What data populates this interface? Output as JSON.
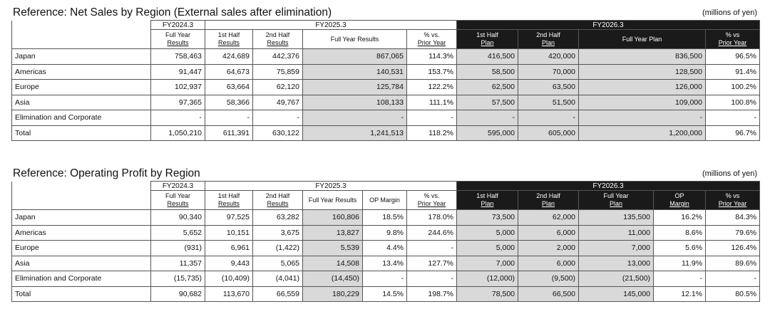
{
  "sales": {
    "title": "Reference: Net Sales by Region (External sales after elimination)",
    "units": "(millions of yen)",
    "period_fy24": "FY2024.3",
    "period_fy25": "FY2025.3",
    "period_fy26": "FY2026.3",
    "h_fy24": [
      "Full Year",
      "Results"
    ],
    "h_h1": [
      "1st Half",
      "Results"
    ],
    "h_h2": [
      "2nd Half",
      "Results"
    ],
    "h_fy25": "Full Year Results",
    "h_pct25": [
      "% vs.",
      "Prior Year"
    ],
    "h_p1": [
      "1st Half",
      "Plan"
    ],
    "h_p2": [
      "2nd Half",
      "Plan"
    ],
    "h_fyp": "Full Year Plan",
    "h_pct26": [
      "% vs",
      "Prior Year"
    ],
    "rows": [
      {
        "label": "Japan",
        "c": [
          "758,463",
          "424,689",
          "442,376",
          "867,065",
          "114.3%",
          "416,500",
          "420,000",
          "836,500",
          "96.5%"
        ]
      },
      {
        "label": "Americas",
        "c": [
          "91,447",
          "64,673",
          "75,859",
          "140,531",
          "153.7%",
          "58,500",
          "70,000",
          "128,500",
          "91.4%"
        ]
      },
      {
        "label": "Europe",
        "c": [
          "102,937",
          "63,664",
          "62,120",
          "125,784",
          "122.2%",
          "62,500",
          "63,500",
          "126,000",
          "100.2%"
        ]
      },
      {
        "label": "Asia",
        "c": [
          "97,365",
          "58,366",
          "49,767",
          "108,133",
          "111.1%",
          "57,500",
          "51,500",
          "109,000",
          "100.8%"
        ]
      },
      {
        "label": "Elimination and Corporate",
        "c": [
          "-",
          "-",
          "-",
          "-",
          "-",
          "-",
          "-",
          "-",
          "-"
        ]
      },
      {
        "label": "Total",
        "c": [
          "1,050,210",
          "611,391",
          "630,122",
          "1,241,513",
          "118.2%",
          "595,000",
          "605,000",
          "1,200,000",
          "96.7%"
        ]
      }
    ]
  },
  "op": {
    "title": "Reference: Operating Profit by Region",
    "units": "(millions of yen)",
    "period_fy24": "FY2024.3",
    "period_fy25": "FY2025.3",
    "period_fy26": "FY2026.3",
    "h_fy24": [
      "Full Year",
      "Results"
    ],
    "h_h1": [
      "1st Half",
      "Results"
    ],
    "h_h2": [
      "2nd Half",
      "Results"
    ],
    "h_fy25": "Full Year Results",
    "h_margin": "OP Margin",
    "h_pct25": [
      "% vs.",
      "Prior Year"
    ],
    "h_p1": [
      "1st Half",
      "Plan"
    ],
    "h_p2": [
      "2nd Half",
      "Plan"
    ],
    "h_fyp": [
      "Full Year",
      "Plan"
    ],
    "h_margin26": [
      "OP",
      "Margin"
    ],
    "h_pct26": [
      "% vs",
      "Prior Year"
    ],
    "rows": [
      {
        "label": "Japan",
        "c": [
          "90,340",
          "97,525",
          "63,282",
          "160,806",
          "18.5%",
          "178.0%",
          "73,500",
          "62,000",
          "135,500",
          "16.2%",
          "84.3%"
        ]
      },
      {
        "label": "Americas",
        "c": [
          "5,652",
          "10,151",
          "3,675",
          "13,827",
          "9.8%",
          "244.6%",
          "5,000",
          "6,000",
          "11,000",
          "8.6%",
          "79.6%"
        ]
      },
      {
        "label": "Europe",
        "c": [
          "(931)",
          "6,961",
          "(1,422)",
          "5,539",
          "4.4%",
          "-",
          "5,000",
          "2,000",
          "7,000",
          "5.6%",
          "126.4%"
        ]
      },
      {
        "label": "Asia",
        "c": [
          "11,357",
          "9,443",
          "5,065",
          "14,508",
          "13.4%",
          "127.7%",
          "7,000",
          "6,000",
          "13,000",
          "11.9%",
          "89.6%"
        ]
      },
      {
        "label": "Elimination and Corporate",
        "c": [
          "(15,735)",
          "(10,409)",
          "(4,041)",
          "(14,450)",
          "-",
          "-",
          "(12,000)",
          "(9,500)",
          "(21,500)",
          "-",
          "-"
        ]
      },
      {
        "label": "Total",
        "c": [
          "90,682",
          "113,670",
          "66,559",
          "180,229",
          "14.5%",
          "198.7%",
          "78,500",
          "66,500",
          "145,000",
          "12.1%",
          "80.5%"
        ]
      }
    ]
  }
}
